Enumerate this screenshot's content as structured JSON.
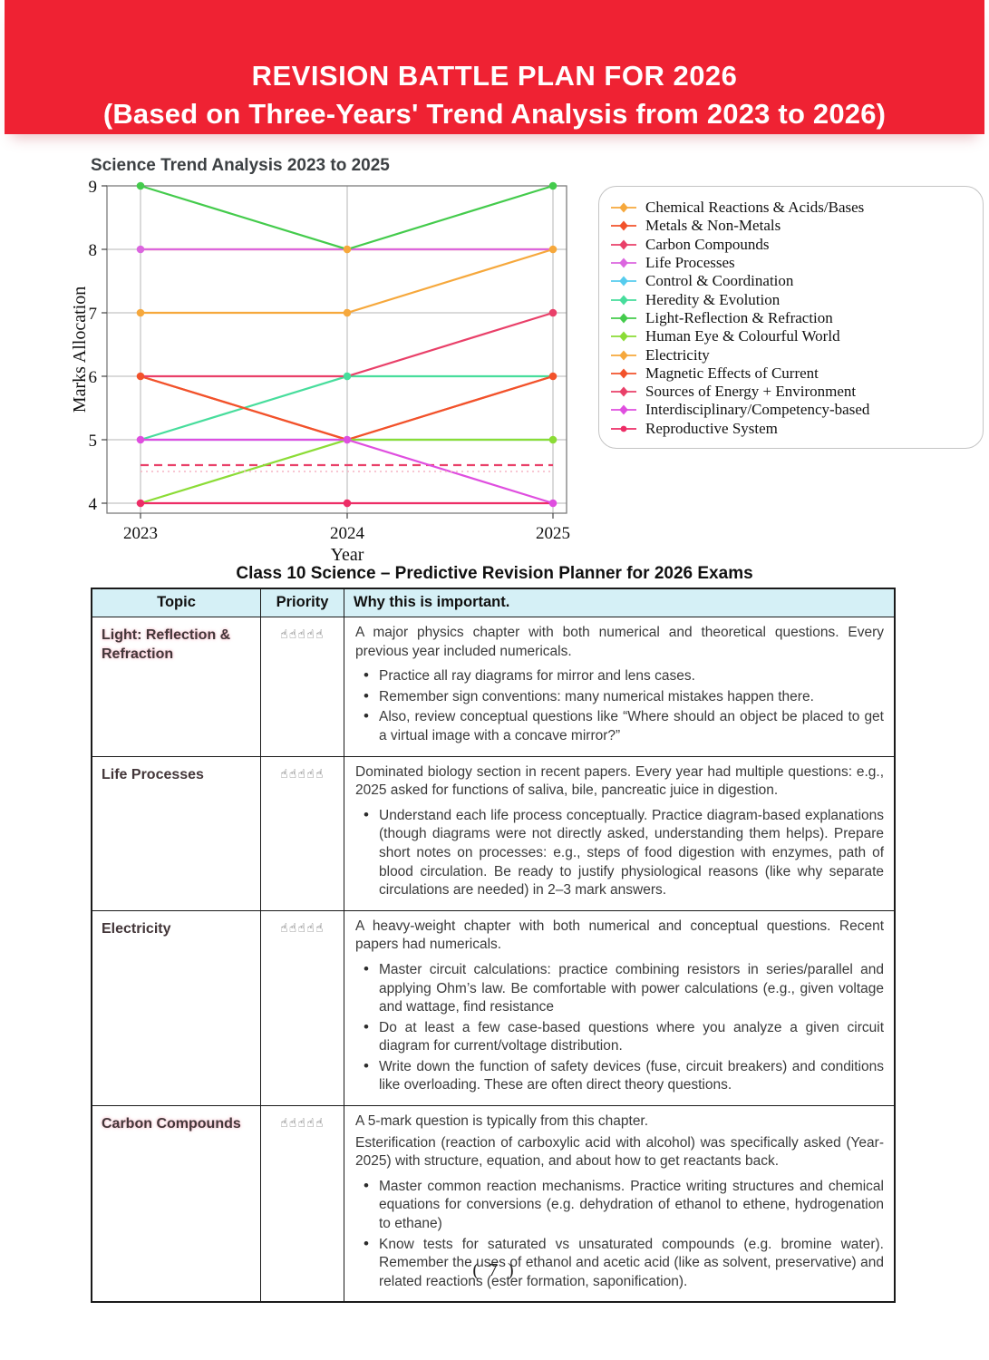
{
  "banner": {
    "line1": "REVISION BATTLE PLAN FOR 2026",
    "line2": "(Based on Three-Years' Trend Analysis from 2023 to 2026)",
    "bg_color": "#EF2233",
    "text_color": "#FFFFFF"
  },
  "chart_data": {
    "type": "line",
    "title": "Science Trend Analysis 2023 to 2025",
    "xlabel": "Year",
    "ylabel": "Marks Allocation",
    "categories": [
      2023,
      2024,
      2025
    ],
    "ylim": [
      4,
      9
    ],
    "yticks": [
      4,
      5,
      6,
      7,
      8,
      9
    ],
    "grid": true,
    "legend_position": "right",
    "series": [
      {
        "name": "Chemical Reactions & Acids/Bases",
        "color": "#F6A83C",
        "values": [
          7,
          7,
          8
        ]
      },
      {
        "name": "Metals & Non-Metals",
        "color": "#F2522B",
        "values": [
          6,
          5,
          6
        ],
        "marker_idx": [
          0,
          2
        ]
      },
      {
        "name": "Carbon Compounds",
        "color": "#E94069",
        "values": [
          6,
          6,
          7
        ],
        "marker_idx": [
          2
        ]
      },
      {
        "name": "Life Processes",
        "color": "#DB66DF",
        "values": [
          8,
          8,
          8
        ],
        "marker_idx": [
          0
        ]
      },
      {
        "name": "Control & Coordination",
        "color": "#56CCEE",
        "values": [
          5,
          5,
          5
        ],
        "marker_idx": []
      },
      {
        "name": "Heredity & Evolution",
        "color": "#47DD9C",
        "values": [
          5,
          6,
          6
        ],
        "marker_idx": [
          1
        ]
      },
      {
        "name": "Light-Reflection & Refraction",
        "color": "#44CB4C",
        "values": [
          9,
          8,
          9
        ],
        "marker_idx": [
          0,
          2
        ]
      },
      {
        "name": "Human Eye & Colourful World",
        "color": "#8BDC36",
        "values": [
          4,
          5,
          5
        ],
        "marker_idx": [
          2
        ]
      },
      {
        "name": "Electricity",
        "color": "#F6A83C",
        "values": [
          8,
          8,
          8
        ],
        "marker_idx": [
          1
        ]
      },
      {
        "name": "Magnetic Effects of Current",
        "color": "#F2522B",
        "values": [
          6,
          5,
          6
        ],
        "marker_idx": []
      },
      {
        "name": "Sources of Energy + Environment",
        "color": "#E94069",
        "values": [
          4.6,
          4.6,
          4.6
        ],
        "dash": "9 6",
        "marker_idx": []
      },
      {
        "name": "Interdisciplinary/Competency-based",
        "color": "#DF4EDF",
        "values": [
          5,
          5,
          4
        ],
        "marker_idx": [
          0,
          1,
          2
        ]
      },
      {
        "name": "Reproductive System",
        "color": "#ED2D66",
        "values": [
          4,
          4,
          4
        ],
        "marker": "circle",
        "marker_idx": [
          0,
          1
        ]
      }
    ],
    "reference_line": {
      "y": 4.5,
      "style": "dotted",
      "color": "#F6B3C3"
    },
    "line_order": [
      "Control & Coordination",
      "Electricity",
      "Sources of Energy + Environment",
      "Heredity & Evolution",
      "Metals & Non-Metals",
      "Magnetic Effects of Current",
      "Carbon Compounds",
      "Human Eye & Colourful World",
      "Reproductive System",
      "Interdisciplinary/Competency-based",
      "Life Processes",
      "Chemical Reactions & Acids/Bases",
      "Light-Reflection & Refraction"
    ],
    "marker_order": [
      "Metals & Non-Metals",
      "Heredity & Evolution",
      "Carbon Compounds",
      "Human Eye & Colourful World",
      "Reproductive System",
      "Interdisciplinary/Competency-based",
      "Life Processes",
      "Light-Reflection & Refraction",
      "Chemical Reactions & Acids/Bases",
      "Electricity"
    ]
  },
  "table": {
    "title": "Class 10 Science –  Predictive Revision Planner for 2026 Exams",
    "headers": [
      "Topic",
      "Priority",
      "Why this is important."
    ],
    "rows": [
      {
        "topic": "Light: Reflection & Refraction",
        "priority": "☝☝☝☝☝",
        "paragraphs": [
          "A major physics chapter with both numerical and theoretical questions. Every previous year included numericals."
        ],
        "bullets": [
          "Practice all ray diagrams for mirror and lens cases.",
          "Remember sign conventions: many numerical mistakes happen there.",
          "Also, review conceptual questions like “Where should an object be placed to get a virtual image with a concave mirror?”"
        ]
      },
      {
        "topic": "Life Processes",
        "priority": "☝☝☝☝☝",
        "paragraphs": [
          "Dominated biology section in recent papers. Every year had multiple questions: e.g., 2025 asked for functions of saliva, bile, pancreatic juice in digestion."
        ],
        "bullets": [
          "Understand each life process conceptually. Practice diagram-based explanations (though diagrams were not directly asked, understanding them helps). Prepare short notes on processes: e.g., steps of food digestion with enzymes, path of blood circulation. Be ready to justify physiological reasons (like why separate circulations are needed) in 2–3 mark answers."
        ]
      },
      {
        "topic": "Electricity",
        "priority": "☝☝☝☝☝",
        "paragraphs": [
          "A heavy-weight chapter with both numerical and conceptual questions. Recent papers had numericals."
        ],
        "bullets": [
          "Master circuit calculations: practice combining resistors in series/parallel and applying Ohm’s law. Be comfortable with power calculations (e.g., given voltage and wattage, find resistance",
          "Do at least a few case-based questions where you analyze a given circuit diagram for current/voltage distribution.",
          "Write down the function of safety devices (fuse, circuit breakers) and conditions like overloading. These are often direct theory questions."
        ]
      },
      {
        "topic": "Carbon Compounds",
        "priority": "☝☝☝☝☝",
        "paragraphs": [
          "A 5-mark question is typically from this chapter.",
          "Esterification (reaction of carboxylic acid with alcohol) was specifically asked (Year-2025) with structure, equation, and about how to get reactants back."
        ],
        "bullets": [
          "Master common reaction mechanisms. Practice writing structures and chemical equations for conversions (e.g. dehydration of ethanol to ethene, hydrogenation to ethane)",
          "Know tests for saturated vs unsaturated compounds (e.g. bromine water). Remember the uses of ethanol and acetic acid (like as solvent, preservative) and related reactions (ester formation, saponification)."
        ]
      }
    ]
  },
  "footer": {
    "page_number": "( 7 )"
  }
}
